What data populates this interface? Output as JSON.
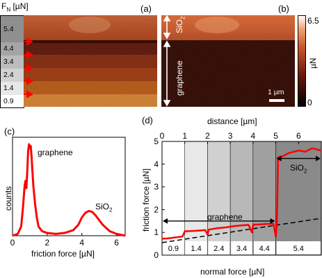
{
  "panel_a": {
    "letter": "(a)",
    "fn_label": "F",
    "fn_sub": "N",
    "fn_unit": "[µN]",
    "levels": [
      "5.4",
      "4.4",
      "3.4",
      "2.4",
      "1.4",
      "0.9"
    ],
    "band_colors": [
      "#c7562a",
      "#3a0e06",
      "#682014",
      "#8e3416",
      "#a94419",
      "#c4641f",
      "#df8c3c"
    ]
  },
  "panel_b": {
    "letter": "(b)",
    "sio2_label": "SiO",
    "sio2_sub": "2",
    "graphene_label": "graphene",
    "scalebar_label": "1 µm"
  },
  "colorbar": {
    "max_label": "6.5",
    "min_label": "0",
    "unit_label": "µN"
  },
  "panel_c": {
    "letter": "(c)",
    "ylabel": "counts",
    "xlabel": "friction force [µN]",
    "x_ticks": [
      "0",
      "2",
      "4",
      "6"
    ],
    "peak1_label": "graphene",
    "peak2_label": "SiO",
    "peak2_sub": "2",
    "line_color": "#ff0000"
  },
  "panel_d": {
    "letter": "(d)",
    "top_axis_label": "distance [µm]",
    "top_ticks": [
      "0",
      "1",
      "2",
      "3",
      "4",
      "5",
      "6"
    ],
    "ylabel": "friction force [µN]",
    "y_ticks": [
      "0",
      "1",
      "2",
      "3",
      "4",
      "5"
    ],
    "xlabel": "normal force [µN]",
    "graphene_label": "graphene",
    "sio2_label": "SiO",
    "sio2_sub": "2",
    "segment_labels": [
      "0.9",
      "1.4",
      "2.4",
      "3.4",
      "4.4",
      "5.4"
    ],
    "segment_shades": [
      "#ffffff",
      "#e8e8e8",
      "#d0d0d0",
      "#b8b8b8",
      "#a0a0a0",
      "#8a8a8a"
    ],
    "line_color": "#ff0000"
  },
  "chart_data": [
    {
      "type": "line",
      "panel": "c",
      "xlabel": "friction force [µN]",
      "ylabel": "counts",
      "xlim": [
        0,
        6.5
      ],
      "x_ticks": [
        0,
        2,
        4,
        6
      ],
      "series": [
        {
          "x": [
            0,
            0.3,
            0.5,
            0.6,
            0.7,
            0.75,
            0.8,
            0.85,
            0.9,
            0.95,
            1.0,
            1.05,
            1.1,
            1.15,
            1.2,
            1.3,
            1.4,
            1.5,
            1.7,
            2.0,
            2.5,
            3.0,
            3.5,
            3.8,
            4.0,
            4.2,
            4.4,
            4.6,
            4.8,
            5.0,
            5.2,
            5.6,
            6.0,
            6.5
          ],
          "y": [
            0.0,
            0.02,
            0.1,
            0.3,
            0.55,
            0.6,
            0.52,
            0.7,
            0.92,
            1.0,
            0.96,
            0.98,
            0.86,
            0.7,
            0.55,
            0.35,
            0.2,
            0.1,
            0.05,
            0.03,
            0.02,
            0.03,
            0.06,
            0.12,
            0.2,
            0.25,
            0.27,
            0.26,
            0.22,
            0.17,
            0.12,
            0.05,
            0.02,
            0.0
          ]
        }
      ]
    },
    {
      "type": "line",
      "panel": "d",
      "top_axis_label": "distance [µm]",
      "xlabel": "normal force [µN]",
      "ylabel": "friction force [µN]",
      "xlim": [
        0,
        7
      ],
      "ylim": [
        0,
        5
      ],
      "x_ticks": [
        0,
        1,
        2,
        3,
        4,
        5,
        6
      ],
      "y_ticks": [
        0,
        1,
        2,
        3,
        4,
        5
      ],
      "segment_boundaries": [
        0,
        1,
        2,
        3,
        4,
        5,
        7
      ],
      "segment_normal_forces": [
        "0.9",
        "1.4",
        "2.4",
        "3.4",
        "4.4",
        "5.4"
      ],
      "series": [
        {
          "x": [
            0,
            0.3,
            0.6,
            0.9,
            1.0,
            1.3,
            1.6,
            1.9,
            2.0,
            2.05,
            2.1,
            2.4,
            2.8,
            3.0,
            3.1,
            3.4,
            3.8,
            3.95,
            4.0,
            4.05,
            4.3,
            4.6,
            4.9,
            5.0,
            5.05,
            5.1,
            5.3,
            5.6,
            6.0,
            6.3,
            6.6,
            7.0
          ],
          "y": [
            0.72,
            0.74,
            0.78,
            0.82,
            1.05,
            1.06,
            1.08,
            1.1,
            0.9,
            1.12,
            1.13,
            1.18,
            1.22,
            1.25,
            1.27,
            1.3,
            1.33,
            1.0,
            1.32,
            1.34,
            1.35,
            1.37,
            1.38,
            0.8,
            1.5,
            4.3,
            4.35,
            4.5,
            4.6,
            4.55,
            4.7,
            4.6
          ]
        },
        {
          "x": [
            0,
            7
          ],
          "y": [
            0.55,
            1.62
          ]
        }
      ],
      "annotations": [
        {
          "text": "graphene",
          "x_range": [
            0,
            5
          ],
          "y": 1.5
        },
        {
          "text": "SiO2",
          "x_range": [
            5,
            7
          ],
          "y": 4.25
        }
      ]
    }
  ]
}
